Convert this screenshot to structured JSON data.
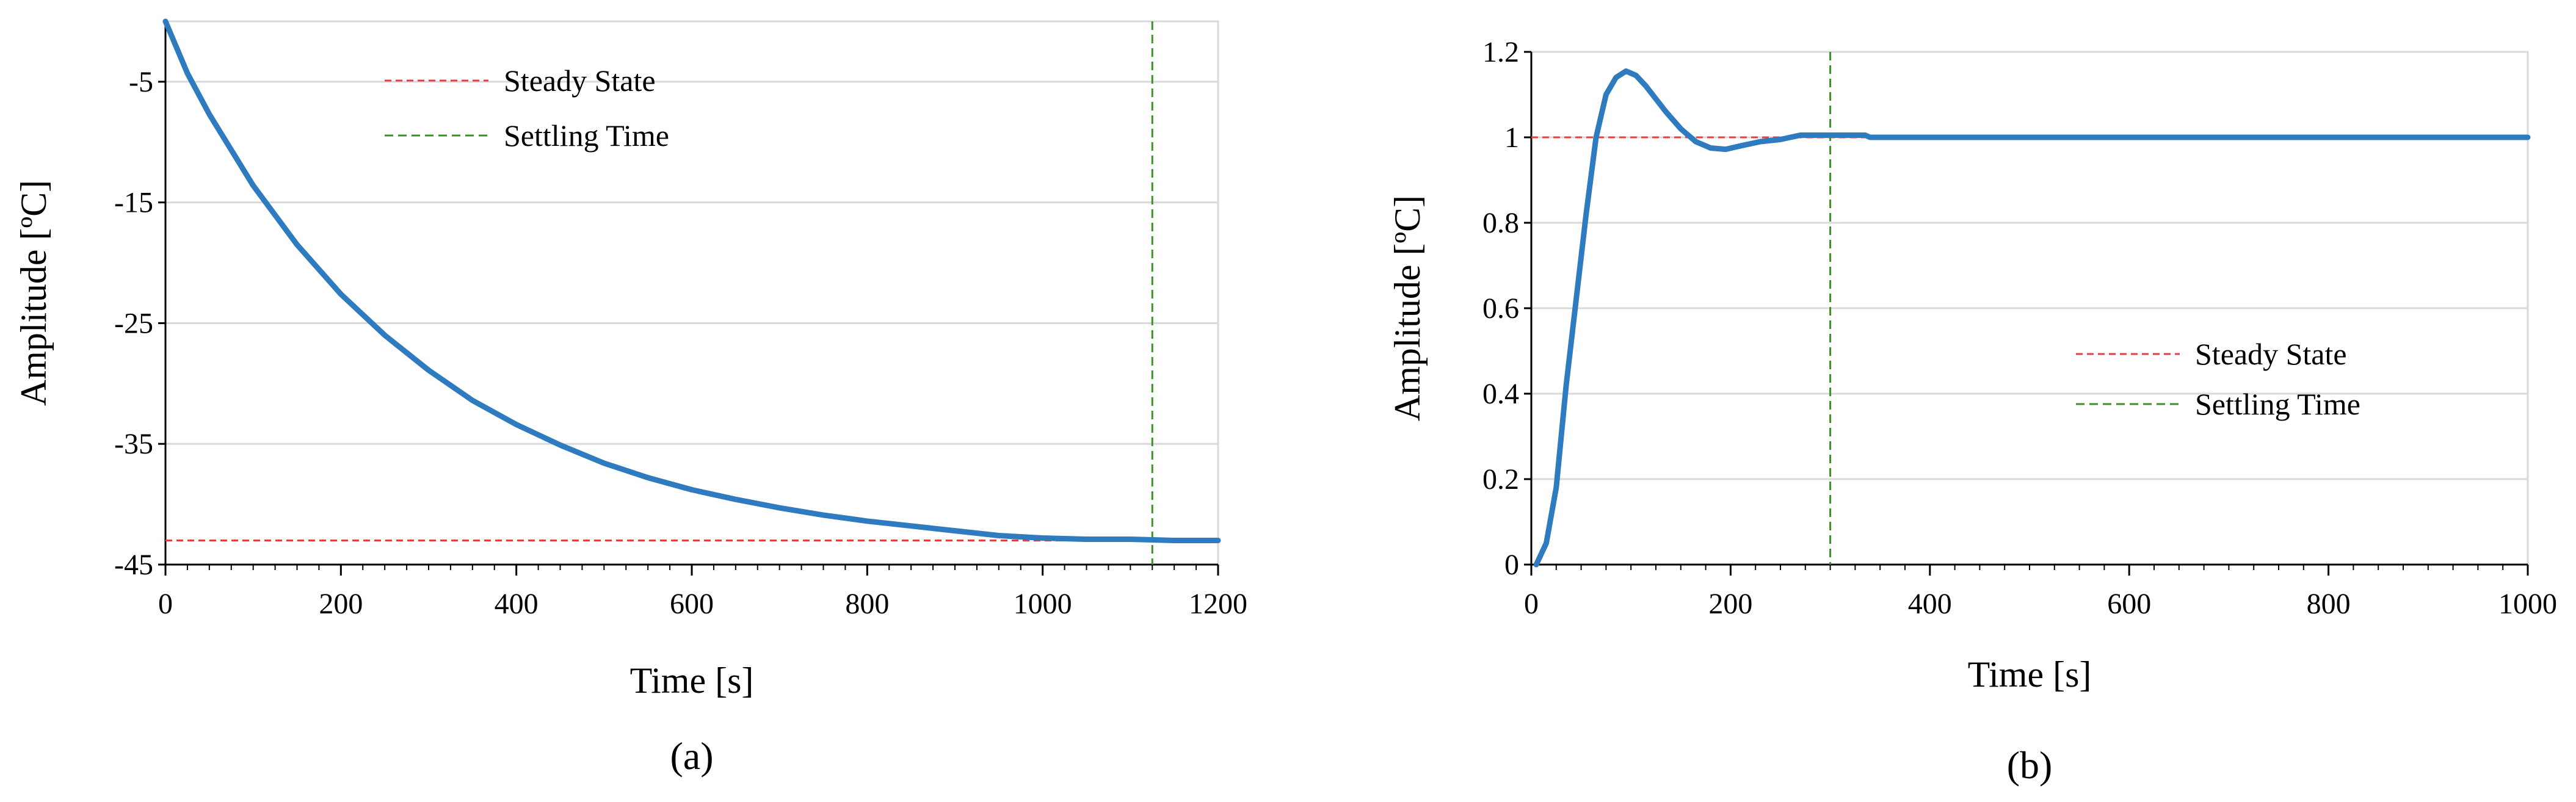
{
  "colors": {
    "series": "#2f7bbf",
    "steady": "#e04040",
    "settling": "#3d8f2a",
    "grid": "#d9d9d9",
    "axis": "#000000"
  },
  "chart_data": [
    {
      "type": "line",
      "panel_label": "(a)",
      "xlabel": "Time [s]",
      "ylabel": "Amplitude [ºC]",
      "xlim": [
        0,
        1200
      ],
      "ylim": [
        -45,
        0
      ],
      "xticks": [
        0,
        200,
        400,
        600,
        800,
        1000,
        1200
      ],
      "xtick_labels": [
        "0",
        "200",
        "400",
        "600",
        "800",
        "1000",
        "1200"
      ],
      "yticks": [
        -5,
        -15,
        -25,
        -35,
        -45
      ],
      "ytick_labels": [
        "-5",
        "-15",
        "-25",
        "-35",
        "-45"
      ],
      "grid": "horizontal",
      "legend_position": "top-center",
      "legend": [
        "Steady State",
        "Settling Time"
      ],
      "series": [
        {
          "x": [
            0,
            25,
            50,
            100,
            150,
            200,
            250,
            300,
            350,
            400,
            450,
            500,
            550,
            600,
            650,
            700,
            750,
            800,
            850,
            900,
            950,
            1000,
            1050,
            1100,
            1150,
            1200
          ],
          "y": [
            0,
            -4.3,
            -7.7,
            -13.6,
            -18.5,
            -22.6,
            -26.0,
            -28.9,
            -31.4,
            -33.4,
            -35.1,
            -36.6,
            -37.8,
            -38.8,
            -39.6,
            -40.3,
            -40.9,
            -41.4,
            -41.8,
            -42.2,
            -42.6,
            -42.8,
            -42.9,
            -42.9,
            -43.0,
            -43.0
          ]
        }
      ],
      "steady_state": -43,
      "settling_time": 1125
    },
    {
      "type": "line",
      "panel_label": "(b)",
      "xlabel": "Time [s]",
      "ylabel": "Amplitude [ºC]",
      "xlim": [
        0,
        1000
      ],
      "ylim": [
        0,
        1.2
      ],
      "xticks": [
        0,
        200,
        400,
        600,
        800,
        1000
      ],
      "xtick_labels": [
        "0",
        "200",
        "400",
        "600",
        "800",
        "1000"
      ],
      "yticks": [
        0,
        0.2,
        0.4,
        0.6,
        0.8,
        1,
        1.2
      ],
      "ytick_labels": [
        "0",
        "0.2",
        "0.4",
        "0.6",
        "0.8",
        "1",
        "1.2"
      ],
      "grid": "horizontal",
      "legend_position": "center-right",
      "legend": [
        "Steady State",
        "Settling Time"
      ],
      "series": [
        {
          "x": [
            5,
            15,
            25,
            35,
            45,
            55,
            65,
            75,
            85,
            95,
            105,
            115,
            125,
            135,
            150,
            165,
            180,
            195,
            210,
            230,
            250,
            270,
            300,
            335,
            340,
            400,
            500,
            600,
            700,
            800,
            900,
            1000
          ],
          "y": [
            0.0,
            0.05,
            0.18,
            0.42,
            0.62,
            0.82,
            1.0,
            1.1,
            1.14,
            1.155,
            1.145,
            1.12,
            1.09,
            1.06,
            1.02,
            0.99,
            0.975,
            0.972,
            0.98,
            0.99,
            0.995,
            1.005,
            1.005,
            1.005,
            1.0,
            1.0,
            1.0,
            1.0,
            1.0,
            1.0,
            1.0,
            1.0
          ]
        }
      ],
      "steady_state": 1,
      "settling_time": 300
    }
  ]
}
